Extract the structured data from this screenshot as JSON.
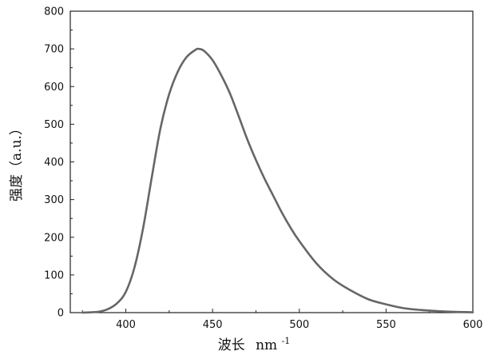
{
  "chart_data": {
    "type": "line",
    "xlabel": "波长",
    "xlabel_unit": "nm",
    "xlabel_unit_exp": "-1",
    "ylabel": "强度（a.u.）",
    "xlim": [
      368,
      600
    ],
    "ylim": [
      0,
      800
    ],
    "x_ticks": [
      "400",
      "450",
      "500",
      "550",
      "600"
    ],
    "y_ticks": [
      "0",
      "100",
      "200",
      "300",
      "400",
      "500",
      "600",
      "700",
      "800"
    ],
    "grid": false,
    "series": [
      {
        "color": "#666666",
        "x": [
          375,
          380,
          385,
          390,
          395,
          400,
          405,
          410,
          415,
          420,
          425,
          430,
          435,
          440,
          442,
          445,
          450,
          455,
          460,
          465,
          470,
          475,
          480,
          485,
          490,
          495,
          500,
          510,
          520,
          530,
          540,
          550,
          560,
          570,
          580,
          590,
          600
        ],
        "y": [
          0,
          1,
          3,
          10,
          25,
          55,
          120,
          225,
          360,
          490,
          580,
          640,
          678,
          697,
          700,
          695,
          670,
          630,
          582,
          522,
          460,
          405,
          355,
          310,
          265,
          225,
          190,
          130,
          87,
          58,
          35,
          22,
          12,
          7,
          4,
          2,
          1
        ]
      }
    ]
  }
}
